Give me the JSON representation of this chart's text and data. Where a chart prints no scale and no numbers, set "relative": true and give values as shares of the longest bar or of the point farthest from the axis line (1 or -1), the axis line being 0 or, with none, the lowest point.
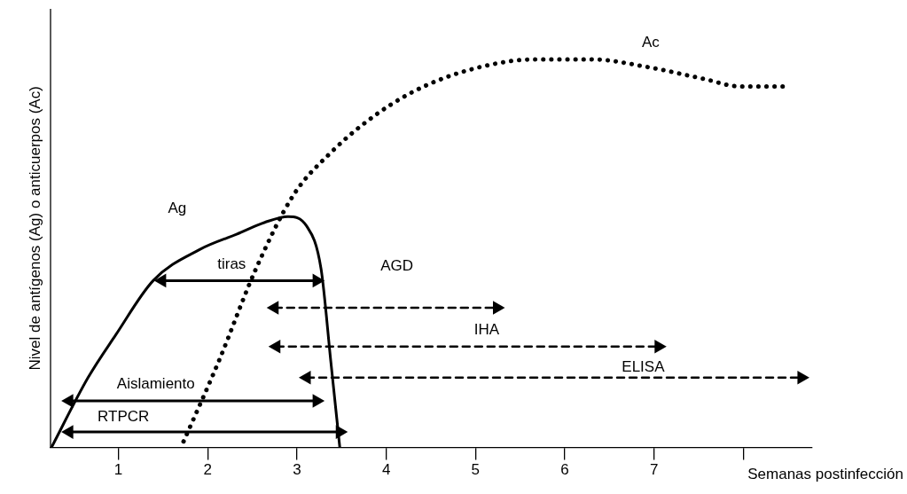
{
  "chart_data": {
    "type": "line",
    "ylabel": "Nivel de antígenos (Ag) o anticuerpos (Ac)",
    "xlabel": "Semanas postinfección",
    "relative": true,
    "xlim": [
      0.24,
      8.77
    ],
    "xticks": [
      1,
      2,
      3,
      4,
      5,
      6,
      7,
      {
        "value": 8,
        "label": null
      }
    ],
    "grid": false,
    "legend": false,
    "marker": "none",
    "series": [
      {
        "name": "Ag",
        "color": "#000000",
        "line_style": "solid",
        "x": [
          0.25,
          0.66,
          0.97,
          1.39,
          1.91,
          2.33,
          2.64,
          2.9,
          3.11,
          3.27,
          3.38,
          3.48
        ],
        "values": [
          0,
          0.18,
          0.29,
          0.43,
          0.51,
          0.55,
          0.58,
          0.595,
          0.57,
          0.46,
          0.22,
          0
        ]
      },
      {
        "name": "Ac",
        "color": "#000000",
        "line_style": "dotted",
        "x": [
          1.7,
          2.12,
          2.54,
          2.96,
          3.38,
          3.9,
          4.42,
          5.05,
          5.67,
          6.3,
          6.93,
          7.55,
          7.97,
          8.44
        ],
        "values": [
          0,
          0.22,
          0.46,
          0.65,
          0.76,
          0.86,
          0.93,
          0.98,
          1,
          1,
          0.98,
          0.95,
          0.93,
          0.93
        ]
      },
      {
        "name": "tiras",
        "color": "#000000",
        "line_style": "solid",
        "marker": "triangle",
        "x": [
          1.49,
          3.22
        ],
        "values": [
          0.43,
          0.43
        ]
      },
      {
        "name": "AGD",
        "color": "#000000",
        "line_style": "dashed",
        "marker": "triangle",
        "x": [
          2.75,
          5.24
        ],
        "values": [
          0.36,
          0.36
        ]
      },
      {
        "name": "IHA",
        "color": "#000000",
        "line_style": "dashed",
        "marker": "triangle",
        "x": [
          2.77,
          7.05
        ],
        "values": [
          0.26,
          0.26
        ]
      },
      {
        "name": "ELISA",
        "color": "#000000",
        "line_style": "dashed",
        "marker": "triangle",
        "x": [
          3.11,
          8.65
        ],
        "values": [
          0.18,
          0.18
        ]
      },
      {
        "name": "Aislamiento",
        "color": "#000000",
        "line_style": "solid",
        "marker": "triangle",
        "x": [
          0.45,
          3.22
        ],
        "values": [
          0.12,
          0.12
        ]
      },
      {
        "name": "RTPCR",
        "color": "#000000",
        "line_style": "solid",
        "marker": "triangle",
        "x": [
          0.45,
          3.48
        ],
        "values": [
          0.04,
          0.04
        ]
      }
    ]
  }
}
